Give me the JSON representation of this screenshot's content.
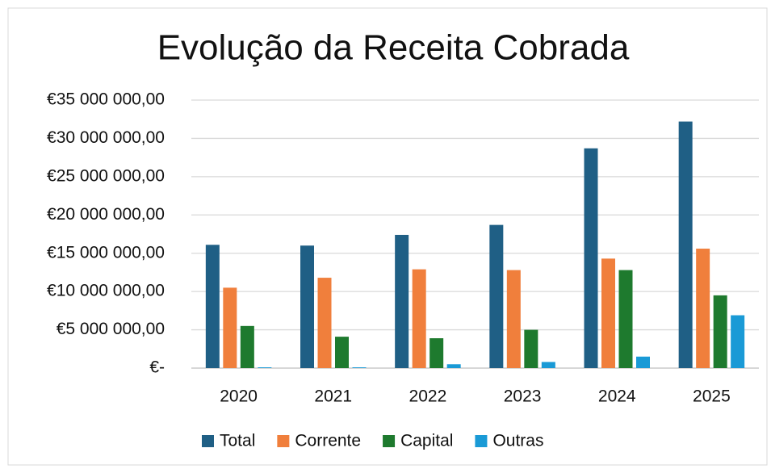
{
  "chart_data": {
    "type": "bar",
    "title": "Evolução da Receita Cobrada",
    "categories": [
      "2020",
      "2021",
      "2022",
      "2023",
      "2024",
      "2025"
    ],
    "series": [
      {
        "name": "Total",
        "color": "#1f5f85",
        "values": [
          16100000,
          16000000,
          17400000,
          18700000,
          28700000,
          32200000
        ]
      },
      {
        "name": "Corrente",
        "color": "#f07f3c",
        "values": [
          10500000,
          11800000,
          12900000,
          12800000,
          14300000,
          15600000
        ]
      },
      {
        "name": "Capital",
        "color": "#1e7a2e",
        "values": [
          5500000,
          4100000,
          3900000,
          5000000,
          12800000,
          9500000
        ]
      },
      {
        "name": "Outras",
        "color": "#1a9ad6",
        "values": [
          100000,
          100000,
          500000,
          800000,
          1500000,
          6900000
        ]
      }
    ],
    "ylim": [
      0,
      35000000
    ],
    "yticks": [
      {
        "value": 0,
        "label": "€-"
      },
      {
        "value": 5000000,
        "label": "€5 000 000,00"
      },
      {
        "value": 10000000,
        "label": "€10 000 000,00"
      },
      {
        "value": 15000000,
        "label": "€15 000 000,00"
      },
      {
        "value": 20000000,
        "label": "€20 000 000,00"
      },
      {
        "value": 25000000,
        "label": "€25 000 000,00"
      },
      {
        "value": 30000000,
        "label": "€30 000 000,00"
      },
      {
        "value": 35000000,
        "label": "€35 000 000,00"
      }
    ],
    "grid": true,
    "legend": "bottom"
  }
}
